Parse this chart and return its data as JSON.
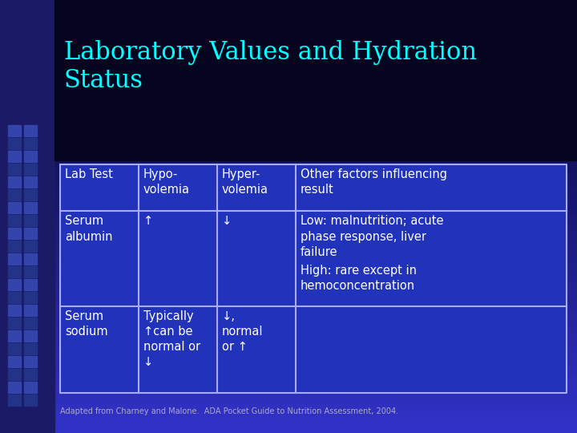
{
  "title_line1": "Laboratory Values and Hydration",
  "title_line2": "Status",
  "title_color": "#00FFFF",
  "bg_top_color": "#000022",
  "bg_bottom_color": "#3344DD",
  "bg_left_strip_color": "#3355EE",
  "table_bg_color": "#2233BB",
  "table_border_color": "#AAAAFF",
  "text_color": "#FFFFFF",
  "footer": "Adapted from Charney and Malone.  ADA Pocket Guide to Nutrition Assessment, 2004.",
  "footer_color": "#AAAACC",
  "col_headers": [
    "Lab Test",
    "Hypo-\nvolemia",
    "Hyper-\nvolemia",
    "Other factors influencing\nresult"
  ],
  "row1_col0": "Serum\nalbumin",
  "row1_col1": "↑",
  "row1_col2": "↓",
  "row1_col3_part1": "Low: malnutrition; acute\nphase response, liver\nfailure",
  "row1_col3_part2": "High: rare except in\nhemoconcentration",
  "row2_col0": "Serum\nsodium",
  "row2_col1": "Typically\n↑can be\nnormal or\n↓",
  "row2_col2": "↓,\nnormal\nor ↑",
  "row2_col3": "",
  "left_squares_color": "#4455CC",
  "left_squares_dark": "#111133"
}
